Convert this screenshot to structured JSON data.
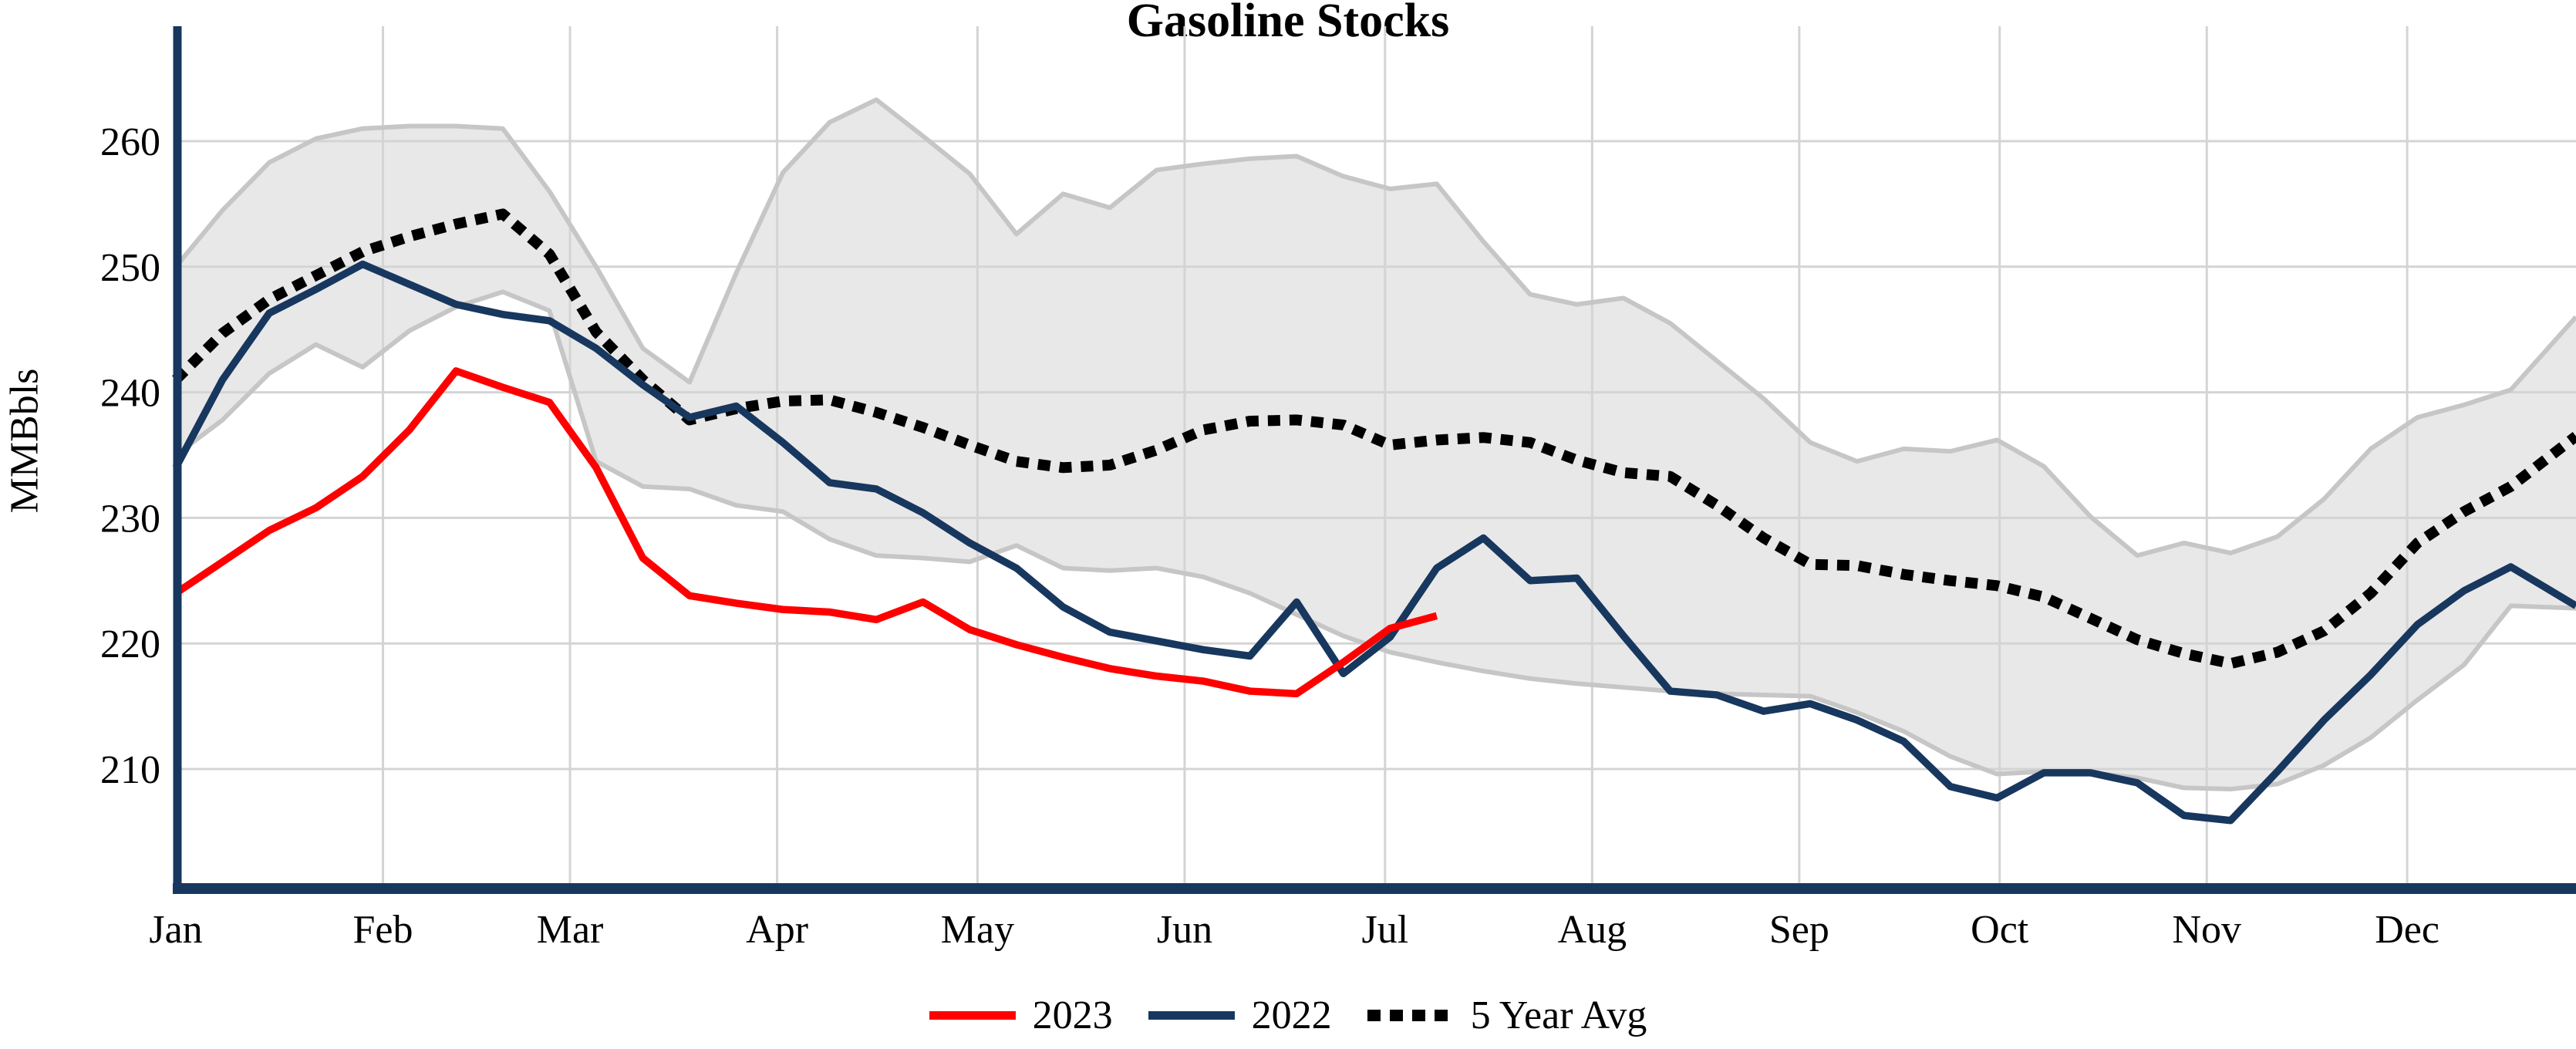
{
  "title": "Gasoline Stocks",
  "y_axis": {
    "label": "MMBbls",
    "ticks": [
      210,
      220,
      230,
      240,
      250,
      260
    ]
  },
  "x_axis": {
    "month_labels": [
      "Jan",
      "Feb",
      "Mar",
      "Apr",
      "May",
      "Jun",
      "Jul",
      "Aug",
      "Sep",
      "Oct",
      "Nov",
      "Dec"
    ],
    "month_day_offsets": [
      0,
      31,
      59,
      90,
      120,
      151,
      181,
      212,
      243,
      273,
      304,
      334
    ]
  },
  "legend": {
    "items": [
      {
        "label": "2023",
        "color": "#FF0000",
        "style": "solid"
      },
      {
        "label": "2022",
        "color": "#17375E",
        "style": "solid"
      },
      {
        "label": "5 Year Avg",
        "color": "#000000",
        "style": "dotted"
      }
    ]
  },
  "colors": {
    "red_2023": "#FF0000",
    "navy_2022": "#17375E",
    "five_year_avg": "#000000",
    "band_fill": "#E8E8E8",
    "band_edge": "#C6C6C6",
    "gridline": "#D4D4D4",
    "axis_spine": "#17375E"
  },
  "chart_data": {
    "type": "line",
    "title": "Gasoline Stocks",
    "ylabel": "MMBbls",
    "x_unit": "week_of_year",
    "ylim": [
      202,
      266
    ],
    "grid": true,
    "legend_position": "bottom-center",
    "band": {
      "name": "5 Year Range",
      "upper": [
        250.0,
        254.5,
        258.3,
        260.2,
        261.0,
        261.2,
        261.2,
        261.0,
        256.0,
        250.0,
        243.5,
        240.8,
        249.5,
        257.5,
        261.5,
        263.3,
        260.4,
        257.4,
        252.6,
        255.8,
        254.7,
        257.7,
        258.2,
        258.6,
        258.8,
        257.2,
        256.2,
        256.6,
        252.0,
        247.8,
        247.0,
        247.5,
        245.5,
        242.5,
        239.5,
        236.0,
        234.5,
        235.5,
        235.3,
        236.2,
        234.1,
        230.1,
        227.0,
        228.0,
        227.2,
        228.5,
        231.5,
        235.5,
        238.0,
        239.0,
        240.2,
        246.0
      ],
      "lower": [
        235.0,
        237.8,
        241.5,
        243.8,
        242.0,
        244.9,
        246.8,
        248.0,
        246.5,
        234.5,
        232.5,
        232.3,
        231.0,
        230.5,
        228.3,
        227.0,
        226.8,
        226.5,
        227.8,
        226.0,
        225.8,
        226.0,
        225.3,
        224.0,
        222.3,
        220.6,
        219.3,
        218.5,
        217.8,
        217.2,
        216.8,
        216.5,
        216.2,
        216.0,
        215.9,
        215.8,
        214.5,
        213.0,
        211.0,
        209.6,
        209.8,
        209.7,
        209.3,
        208.5,
        208.4,
        208.8,
        210.3,
        212.5,
        215.5,
        218.3,
        223.0,
        222.8
      ]
    },
    "series": [
      {
        "name": "2023",
        "color": "#FF0000",
        "style": "solid",
        "values": [
          224.0,
          226.5,
          229.0,
          230.8,
          233.3,
          237.0,
          241.7,
          240.4,
          239.2,
          234.0,
          226.8,
          223.8,
          223.2,
          222.7,
          222.5,
          221.9,
          223.3,
          221.1,
          219.9,
          218.9,
          218.0,
          217.4,
          217.0,
          216.2,
          216.0,
          218.5,
          221.2,
          222.2
        ]
      },
      {
        "name": "2022",
        "color": "#17375E",
        "style": "solid",
        "values": [
          234.0,
          241.0,
          246.3,
          248.2,
          250.2,
          248.6,
          247.0,
          246.2,
          245.7,
          243.5,
          240.6,
          238.0,
          238.9,
          236.0,
          232.8,
          232.3,
          230.4,
          228.0,
          226.0,
          222.9,
          220.9,
          220.2,
          219.5,
          219.0,
          223.3,
          217.6,
          220.5,
          226.0,
          228.4,
          225.0,
          225.2,
          220.6,
          216.2,
          215.9,
          214.6,
          215.2,
          213.9,
          212.2,
          208.6,
          207.7,
          209.7,
          209.7,
          208.9,
          206.3,
          205.9,
          209.8,
          213.9,
          217.5,
          221.5,
          224.2,
          226.1,
          223.0
        ]
      },
      {
        "name": "5 Year Avg",
        "color": "#000000",
        "style": "dotted",
        "values": [
          241.0,
          244.7,
          247.4,
          249.3,
          251.2,
          252.4,
          253.4,
          254.2,
          251.0,
          244.8,
          241.0,
          237.8,
          238.7,
          239.3,
          239.4,
          238.4,
          237.2,
          235.8,
          234.5,
          234.0,
          234.2,
          235.4,
          237.0,
          237.7,
          237.8,
          237.4,
          235.8,
          236.2,
          236.4,
          236.0,
          234.6,
          233.6,
          233.3,
          231.0,
          228.4,
          226.3,
          226.2,
          225.5,
          225.0,
          224.6,
          223.7,
          222.0,
          220.3,
          219.2,
          218.4,
          219.3,
          221.0,
          224.0,
          228.0,
          230.5,
          232.5,
          236.5
        ]
      }
    ]
  }
}
